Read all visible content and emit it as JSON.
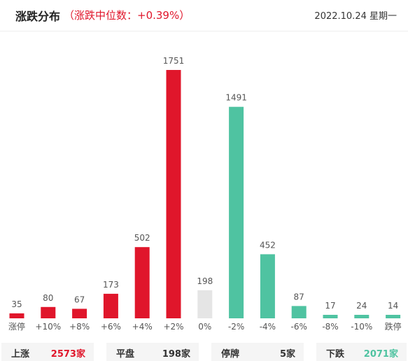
{
  "header": {
    "title": "涨跌分布",
    "subtitle": "（涨跌中位数：+0.39%）",
    "date": "2022.10.24 星期一"
  },
  "colors": {
    "up": "#e0162b",
    "flat": "#e5e5e5",
    "down": "#4fc3a1"
  },
  "chart_data": {
    "type": "bar",
    "categories": [
      "涨停",
      "+10%",
      "+8%",
      "+6%",
      "+4%",
      "+2%",
      "0%",
      "-2%",
      "-4%",
      "-6%",
      "-8%",
      "-10%",
      "跌停"
    ],
    "values": [
      35,
      80,
      67,
      173,
      502,
      1751,
      198,
      1491,
      452,
      87,
      17,
      24,
      14
    ],
    "bar_colors": [
      "up",
      "up",
      "up",
      "up",
      "up",
      "up",
      "flat",
      "down",
      "down",
      "down",
      "down",
      "down",
      "down"
    ],
    "grid": false
  },
  "summary": [
    {
      "label": "上涨",
      "value": "2573",
      "unit": "家",
      "color": "#e0162b"
    },
    {
      "label": "平盘",
      "value": "198",
      "unit": "家",
      "color": "#333333"
    },
    {
      "label": "停牌",
      "value": "5",
      "unit": "家",
      "color": "#333333"
    },
    {
      "label": "下跌",
      "value": "2071",
      "unit": "家",
      "color": "#4fc3a1"
    }
  ]
}
